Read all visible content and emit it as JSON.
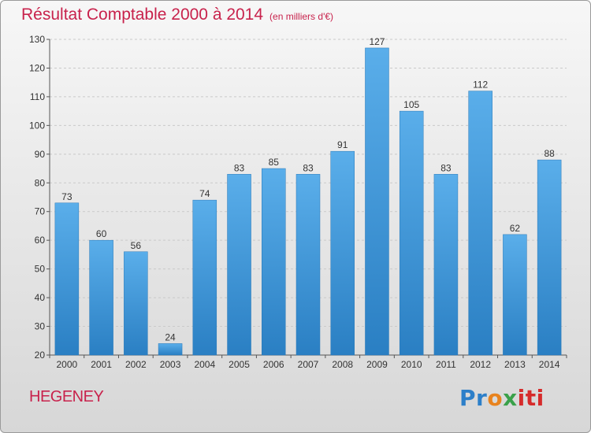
{
  "title": "Résultat Comptable 2000 à 2014",
  "subtitle": "(en milliers d'€)",
  "town": "HEGENEY",
  "logo": {
    "p1": "Pr",
    "p2": "o",
    "p3": "x",
    "p4": "iti"
  },
  "colors": {
    "bar_light": "#5aaeea",
    "bar_dark": "#2a7fc3",
    "title": "#c8224c"
  },
  "chart_data": {
    "type": "bar",
    "categories": [
      "2000",
      "2001",
      "2002",
      "2003",
      "2004",
      "2005",
      "2006",
      "2007",
      "2008",
      "2009",
      "2010",
      "2011",
      "2012",
      "2013",
      "2014"
    ],
    "values": [
      73,
      60,
      56,
      24,
      74,
      83,
      85,
      83,
      91,
      127,
      105,
      83,
      112,
      62,
      88
    ],
    "title": "Résultat Comptable 2000 à 2014",
    "subtitle": "(en milliers d'€)",
    "ylim": [
      20,
      130
    ],
    "yticks": [
      20,
      30,
      40,
      50,
      60,
      70,
      80,
      90,
      100,
      110,
      120,
      130
    ],
    "grid": true,
    "legend": "none"
  }
}
